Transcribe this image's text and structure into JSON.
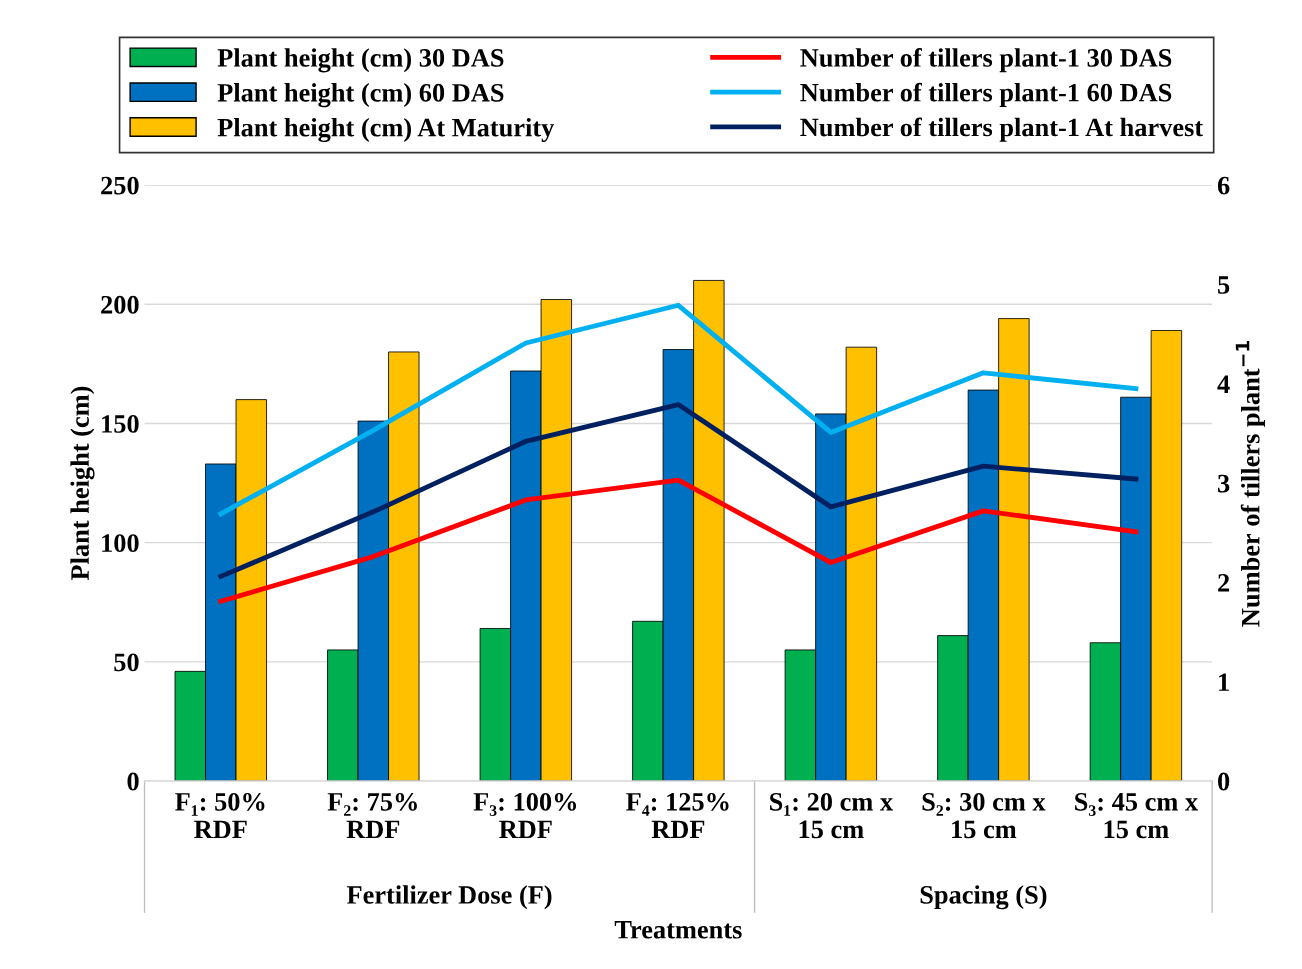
{
  "chart_data": {
    "type": "bar",
    "xlabel": "Treatments",
    "ylabel": "Plant height (cm)",
    "y2label": "Number of tillers plant$^{−1}$",
    "categories": [
      "F₁: 50%\nRDF",
      "F₂: 75%\nRDF",
      "F₃: 100%\nRDF",
      "F₄: 125%\nRDF",
      "S₁: 20 cm x\n15 cm",
      "S₂: 30 cm x\n15 cm",
      "S₃: 45 cm x\n15 cm"
    ],
    "series": [
      {
        "name": "Plant height (cm) 30 DAS",
        "color": "#00b050",
        "values": [
          46,
          55,
          64,
          67,
          55,
          61,
          58
        ]
      },
      {
        "name": "Plant height (cm) 60 DAS",
        "color": "#0070c0",
        "values": [
          133,
          151,
          172,
          181,
          154,
          164,
          161
        ]
      },
      {
        "name": "Plant height (cm) At Maturity",
        "color": "#ffc000",
        "values": [
          160,
          180,
          202,
          210,
          182,
          194,
          189
        ]
      },
      {
        "name": "Number of tillers plant-1 30 DAS",
        "color": "#ff0000",
        "type": "line",
        "axis": "y2",
        "values": [
          1.81,
          2.26,
          2.83,
          3.03,
          2.2,
          2.72,
          2.51
        ]
      },
      {
        "name": "Number of tillers plant-1 60 DAS",
        "color": "#00b0f0",
        "type": "line",
        "axis": "y2",
        "values": [
          2.69,
          3.53,
          4.41,
          4.79,
          3.51,
          4.11,
          3.95
        ]
      },
      {
        "name": "Number of tillers plant-1 At harvest",
        "color": "#002060",
        "type": "line",
        "axis": "y2",
        "values": [
          2.06,
          2.71,
          3.42,
          3.79,
          2.76,
          3.17,
          3.04
        ]
      }
    ],
    "ylim": [
      0,
      250
    ],
    "yticks": [
      0,
      50,
      100,
      150,
      200,
      250
    ],
    "y2lim": [
      0,
      6
    ],
    "y2ticks": [
      0,
      1,
      2,
      3,
      4,
      5,
      6
    ],
    "grid": "y",
    "legend": "top",
    "annotations": [
      "Fertilizer Dose (F)",
      "Spacing (S)"
    ]
  }
}
